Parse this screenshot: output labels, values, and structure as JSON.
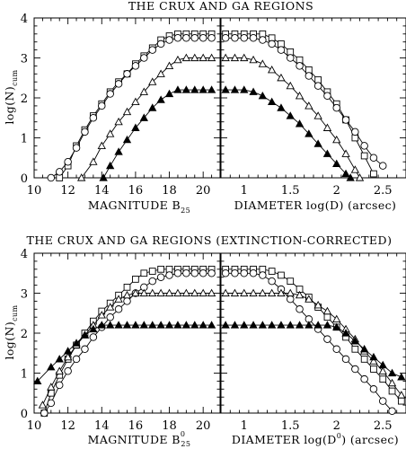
{
  "chart_data": [
    {
      "type": "line",
      "title": "THE CRUX AND GA REGIONS",
      "xlabel": "MAGNITUDE B",
      "xlabel_sub": "25",
      "ylabel": "log(N)",
      "ylabel_sub": "cum",
      "xlim": [
        10,
        21
      ],
      "ylim": [
        0,
        4
      ],
      "xticks": [
        "10",
        "12",
        "14",
        "16",
        "18",
        "20"
      ],
      "yticks": [
        "0",
        "1",
        "2",
        "3",
        "4"
      ],
      "series": [
        {
          "marker": "square",
          "x": [
            11.5,
            12,
            12.5,
            13,
            13.5,
            14,
            14.5,
            15,
            15.5,
            16,
            16.5,
            17,
            17.5,
            18,
            18.5,
            19,
            19.5,
            20,
            20.5
          ],
          "y": [
            0,
            0.3,
            0.8,
            1.2,
            1.55,
            1.85,
            2.15,
            2.4,
            2.6,
            2.85,
            3.05,
            3.25,
            3.45,
            3.55,
            3.6,
            3.6,
            3.6,
            3.6,
            3.6
          ]
        },
        {
          "marker": "circle",
          "x": [
            11,
            11.5,
            12,
            12.5,
            13,
            13.5,
            14,
            14.5,
            15,
            15.5,
            16,
            16.5,
            17,
            17.5,
            18,
            18.5,
            19,
            19.5,
            20,
            20.5
          ],
          "y": [
            0,
            0.15,
            0.4,
            0.75,
            1.15,
            1.5,
            1.8,
            2.1,
            2.35,
            2.6,
            2.8,
            3,
            3.2,
            3.35,
            3.45,
            3.5,
            3.5,
            3.5,
            3.5,
            3.5
          ]
        },
        {
          "marker": "triangle-open",
          "x": [
            12.8,
            13.5,
            14,
            14.5,
            15,
            15.5,
            16,
            16.5,
            17,
            17.5,
            18,
            18.5,
            19,
            19.5,
            20,
            20.5
          ],
          "y": [
            0,
            0.4,
            0.8,
            1.1,
            1.4,
            1.65,
            1.9,
            2.15,
            2.4,
            2.6,
            2.8,
            2.95,
            3,
            3,
            3,
            3
          ]
        },
        {
          "marker": "triangle-filled",
          "x": [
            14.1,
            14.5,
            15,
            15.5,
            16,
            16.5,
            17,
            17.5,
            18,
            18.5,
            19,
            19.5,
            20,
            20.5
          ],
          "y": [
            0,
            0.3,
            0.65,
            0.95,
            1.25,
            1.5,
            1.75,
            1.95,
            2.1,
            2.2,
            2.2,
            2.2,
            2.2,
            2.2
          ]
        }
      ]
    },
    {
      "type": "line",
      "title": "",
      "xlabel": "DIAMETER log(D) (arcsec)",
      "xlabel_sub": "",
      "ylabel": "",
      "xlim": [
        0.75,
        2.75
      ],
      "ylim": [
        0,
        4
      ],
      "xticks": [
        "1",
        "1.5",
        "2",
        "2.5"
      ],
      "yticks": [],
      "series": [
        {
          "marker": "square",
          "x": [
            0.8,
            0.9,
            1,
            1.1,
            1.2,
            1.3,
            1.4,
            1.5,
            1.6,
            1.7,
            1.8,
            1.9,
            2,
            2.1,
            2.2,
            2.3,
            2.4
          ],
          "y": [
            3.6,
            3.6,
            3.6,
            3.6,
            3.6,
            3.5,
            3.35,
            3.15,
            2.95,
            2.7,
            2.45,
            2.15,
            1.85,
            1.45,
            1,
            0.55,
            0.1
          ]
        },
        {
          "marker": "circle",
          "x": [
            0.8,
            0.9,
            1,
            1.1,
            1.2,
            1.3,
            1.4,
            1.5,
            1.6,
            1.7,
            1.8,
            1.9,
            2,
            2.1,
            2.2,
            2.3,
            2.4,
            2.5
          ],
          "y": [
            3.5,
            3.5,
            3.5,
            3.5,
            3.45,
            3.35,
            3.2,
            3,
            2.8,
            2.55,
            2.3,
            2.05,
            1.75,
            1.45,
            1.15,
            0.8,
            0.5,
            0.3
          ]
        },
        {
          "marker": "triangle-open",
          "x": [
            0.8,
            0.9,
            1,
            1.1,
            1.2,
            1.3,
            1.4,
            1.5,
            1.6,
            1.7,
            1.8,
            1.9,
            2,
            2.1,
            2.2,
            2.25
          ],
          "y": [
            3,
            3,
            3,
            2.95,
            2.85,
            2.7,
            2.5,
            2.3,
            2.05,
            1.8,
            1.55,
            1.25,
            0.95,
            0.6,
            0.2,
            0
          ]
        },
        {
          "marker": "triangle-filled",
          "x": [
            0.8,
            0.9,
            1,
            1.1,
            1.2,
            1.3,
            1.4,
            1.5,
            1.6,
            1.7,
            1.8,
            1.9,
            2,
            2.1,
            2.15
          ],
          "y": [
            2.2,
            2.2,
            2.2,
            2.15,
            2.05,
            1.9,
            1.75,
            1.55,
            1.35,
            1.1,
            0.85,
            0.6,
            0.35,
            0.1,
            0
          ]
        }
      ]
    },
    {
      "type": "line",
      "title": "THE CRUX AND GA REGIONS (EXTINCTION-CORRECTED)",
      "xlabel": "MAGNITUDE B",
      "xlabel_sub": "25",
      "xlabel_sup": "0",
      "ylabel": "log(N)",
      "ylabel_sub": "cum",
      "xlim": [
        10,
        21
      ],
      "ylim": [
        0,
        4
      ],
      "xticks": [
        "10",
        "12",
        "14",
        "16",
        "18",
        "20"
      ],
      "yticks": [
        "0",
        "1",
        "2",
        "3",
        "4"
      ],
      "series": [
        {
          "marker": "square",
          "x": [
            10.6,
            11,
            11.5,
            12,
            12.5,
            13,
            13.5,
            14,
            14.5,
            15,
            15.5,
            16,
            16.5,
            17,
            17.5,
            18,
            18.5,
            19,
            19.5,
            20,
            20.5
          ],
          "y": [
            0,
            0.5,
            0.95,
            1.35,
            1.7,
            2,
            2.3,
            2.55,
            2.75,
            2.95,
            3.15,
            3.35,
            3.5,
            3.55,
            3.6,
            3.6,
            3.6,
            3.6,
            3.6,
            3.6,
            3.6
          ]
        },
        {
          "marker": "circle",
          "x": [
            10.6,
            11,
            11.5,
            12,
            12.5,
            13,
            13.5,
            14,
            14.5,
            15,
            15.5,
            16,
            16.5,
            17,
            17.5,
            18,
            18.5,
            19,
            19.5,
            20,
            20.5
          ],
          "y": [
            0,
            0.25,
            0.7,
            1.05,
            1.35,
            1.6,
            1.9,
            2.15,
            2.4,
            2.6,
            2.8,
            3,
            3.15,
            3.3,
            3.4,
            3.45,
            3.5,
            3.5,
            3.5,
            3.5,
            3.5
          ]
        },
        {
          "marker": "triangle-open",
          "x": [
            10.5,
            11,
            11.5,
            12,
            12.5,
            13,
            13.5,
            14,
            14.5,
            15,
            15.5,
            16,
            16.5,
            17,
            17.5,
            18,
            18.5,
            19,
            19.5,
            20,
            20.5
          ],
          "y": [
            0.2,
            0.65,
            1.05,
            1.4,
            1.7,
            1.95,
            2.2,
            2.45,
            2.65,
            2.85,
            2.95,
            3,
            3,
            3,
            3,
            3,
            3,
            3,
            3,
            3,
            3
          ]
        },
        {
          "marker": "triangle-filled",
          "x": [
            10.2,
            11,
            11.5,
            12,
            12.5,
            13,
            13.5,
            14,
            14.5,
            15,
            15.5,
            16,
            16.5,
            17,
            17.5,
            18,
            18.5,
            19,
            19.5,
            20,
            20.5
          ],
          "y": [
            0.8,
            1.15,
            1.35,
            1.55,
            1.75,
            1.95,
            2.1,
            2.2,
            2.2,
            2.2,
            2.2,
            2.2,
            2.2,
            2.2,
            2.2,
            2.2,
            2.2,
            2.2,
            2.2,
            2.2,
            2.2
          ]
        }
      ]
    },
    {
      "type": "line",
      "title": "",
      "xlabel": "DIAMETER log(D",
      "xlabel_sup": "0",
      "xlabel_tail": ") (arcsec)",
      "ylabel": "",
      "xlim": [
        0.75,
        2.75
      ],
      "ylim": [
        0,
        4
      ],
      "xticks": [
        "1",
        "1.5",
        "2",
        "2.5"
      ],
      "yticks": [],
      "series": [
        {
          "marker": "square",
          "x": [
            0.8,
            0.9,
            1,
            1.1,
            1.2,
            1.3,
            1.4,
            1.5,
            1.6,
            1.7,
            1.8,
            1.9,
            2,
            2.1,
            2.2,
            2.3,
            2.4,
            2.5,
            2.6,
            2.7
          ],
          "y": [
            3.6,
            3.6,
            3.6,
            3.6,
            3.6,
            3.55,
            3.45,
            3.3,
            3.1,
            2.9,
            2.65,
            2.4,
            2.15,
            1.9,
            1.6,
            1.35,
            1.1,
            0.85,
            0.55,
            0.3
          ]
        },
        {
          "marker": "circle",
          "x": [
            0.8,
            0.9,
            1,
            1.1,
            1.2,
            1.3,
            1.4,
            1.5,
            1.6,
            1.7,
            1.8,
            1.9,
            2,
            2.1,
            2.2,
            2.3,
            2.4,
            2.5,
            2.6
          ],
          "y": [
            3.5,
            3.5,
            3.5,
            3.5,
            3.45,
            3.3,
            3.1,
            2.85,
            2.6,
            2.35,
            2.1,
            1.85,
            1.6,
            1.35,
            1.1,
            0.85,
            0.6,
            0.3,
            0.05
          ]
        },
        {
          "marker": "triangle-open",
          "x": [
            0.8,
            0.9,
            1,
            1.1,
            1.2,
            1.3,
            1.4,
            1.5,
            1.6,
            1.7,
            1.8,
            1.9,
            2,
            2.1,
            2.2,
            2.3,
            2.4,
            2.5,
            2.6,
            2.7
          ],
          "y": [
            3,
            3,
            3,
            3,
            3,
            3,
            3,
            3,
            2.95,
            2.85,
            2.7,
            2.55,
            2.35,
            2.1,
            1.85,
            1.55,
            1.3,
            1.05,
            0.75,
            0.45
          ]
        },
        {
          "marker": "triangle-filled",
          "x": [
            0.8,
            0.9,
            1,
            1.1,
            1.2,
            1.3,
            1.4,
            1.5,
            1.6,
            1.7,
            1.8,
            1.9,
            2,
            2.1,
            2.2,
            2.3,
            2.4,
            2.5,
            2.6,
            2.7
          ],
          "y": [
            2.2,
            2.2,
            2.2,
            2.2,
            2.2,
            2.2,
            2.2,
            2.2,
            2.2,
            2.2,
            2.2,
            2.2,
            2.15,
            2.0,
            1.8,
            1.6,
            1.4,
            1.2,
            1.0,
            0.9
          ]
        }
      ]
    }
  ]
}
